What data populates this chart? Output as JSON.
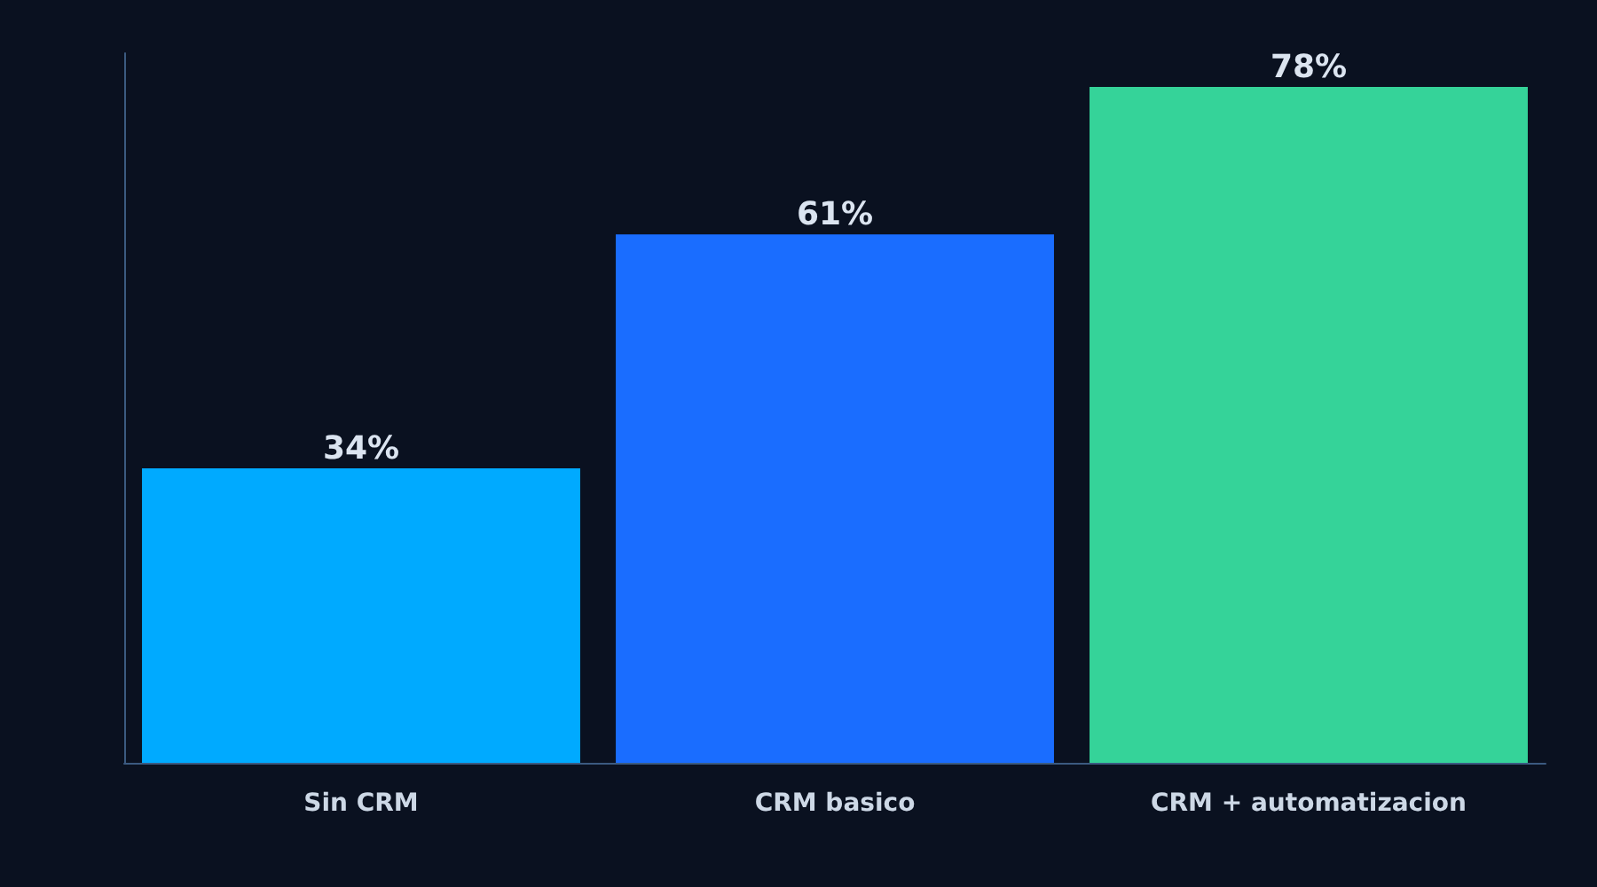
{
  "chart_data": {
    "type": "bar",
    "categories": [
      "Sin CRM",
      "CRM basico",
      "CRM + automatizacion"
    ],
    "values": [
      34,
      61,
      78
    ],
    "colors": [
      "#00aaff",
      "#1a6dff",
      "#35d399"
    ],
    "value_labels": [
      "34%",
      "61%",
      "78%"
    ],
    "grid": false
  }
}
